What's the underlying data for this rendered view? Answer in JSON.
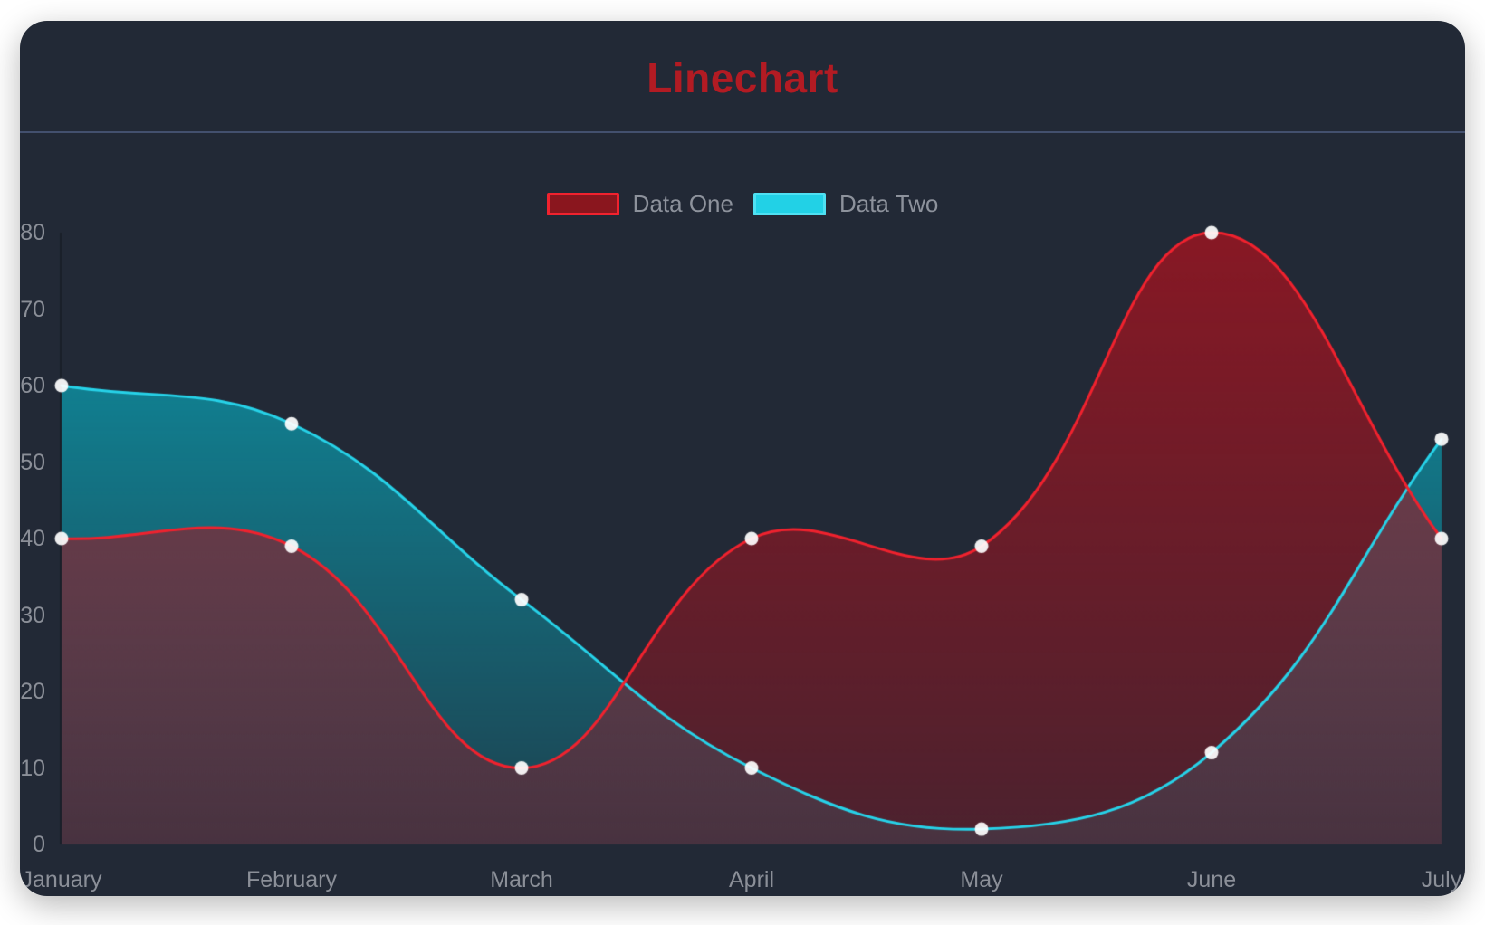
{
  "card": {
    "background": "#222936",
    "divider_color": "#43506e"
  },
  "chart_data": {
    "type": "line",
    "title": "Linechart",
    "title_color": "#b21b23",
    "categories": [
      "January",
      "February",
      "March",
      "April",
      "May",
      "June",
      "July"
    ],
    "series": [
      {
        "name": "Data One",
        "line_color": "#f1222e",
        "fill_color": "#a51420",
        "fill_alpha_top": 0.78,
        "fill_alpha_bottom": 0.32,
        "legend_swatch_fill": "#8a161e",
        "legend_swatch_border": "#f1222e",
        "values": [
          40,
          39,
          10,
          40,
          39,
          80,
          40
        ]
      },
      {
        "name": "Data Two",
        "line_color": "#27d3e9",
        "fill_color": "#00d6eb",
        "fill_alpha_top": 0.62,
        "fill_alpha_bottom": 0.14,
        "legend_swatch_fill": "#22d1e6",
        "legend_swatch_border": "#4fe0f2",
        "values": [
          60,
          55,
          32,
          10,
          2,
          12,
          53
        ]
      }
    ],
    "yticks": [
      0,
      10,
      20,
      30,
      40,
      50,
      60,
      70,
      80
    ],
    "ylim": [
      0,
      80
    ],
    "xlabel": "",
    "ylabel": "",
    "legend_position": "top-center",
    "legend_text_color": "#8d929c",
    "grid": false,
    "bezier_tension": 0.4,
    "point_color": "#ffffff",
    "point_radius": 7.5,
    "axis_text_color": "#8b8f98",
    "axis_line_color": "rgba(0,0,0,0.25)"
  }
}
